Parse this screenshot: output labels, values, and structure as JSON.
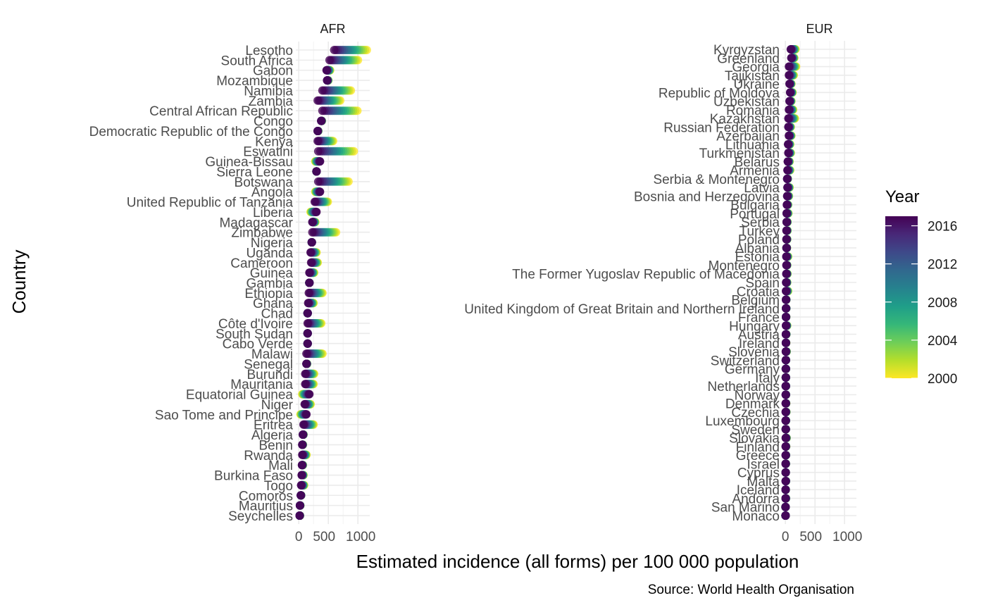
{
  "chart_data": {
    "type": "scatter",
    "facets": [
      "AFR",
      "EUR"
    ],
    "xlabel": "Estimated incidence (all forms) per 100 000 population",
    "ylabel": "Country",
    "caption": "Source: World Health Organisation",
    "x_ticks": [
      "0",
      "500",
      "1000"
    ],
    "xlim": [
      -50,
      1200
    ],
    "legend": {
      "title": "Year",
      "position": "right",
      "range": [
        2000,
        2017
      ],
      "breaks": [
        2016,
        2012,
        2008,
        2004,
        2000
      ],
      "colors": [
        "#fde725",
        "#5ec962",
        "#21918c",
        "#3b528b",
        "#440154"
      ]
    },
    "grid": true,
    "year_range": [
      2000,
      2017
    ],
    "afr": [
      {
        "name": "Lesotho",
        "start": 1150,
        "end": 600
      },
      {
        "name": "South Africa",
        "start": 1000,
        "end": 520
      },
      {
        "name": "Gabon",
        "start": 530,
        "end": 470
      },
      {
        "name": "Mozambique",
        "start": 500,
        "end": 480
      },
      {
        "name": "Namibia",
        "start": 880,
        "end": 400
      },
      {
        "name": "Zambia",
        "start": 700,
        "end": 320
      },
      {
        "name": "Central African Republic",
        "start": 990,
        "end": 400
      },
      {
        "name": "Congo",
        "start": 390,
        "end": 380
      },
      {
        "name": "Democratic Republic of the Congo",
        "start": 330,
        "end": 320
      },
      {
        "name": "Kenya",
        "start": 580,
        "end": 320
      },
      {
        "name": "Eswatini",
        "start": 930,
        "end": 330
      },
      {
        "name": "Guinea-Bissau",
        "start": 280,
        "end": 360
      },
      {
        "name": "Sierra Leone",
        "start": 300,
        "end": 300
      },
      {
        "name": "Botswana",
        "start": 840,
        "end": 330
      },
      {
        "name": "Angola",
        "start": 280,
        "end": 360
      },
      {
        "name": "United Republic of Tanzania",
        "start": 490,
        "end": 270
      },
      {
        "name": "Liberia",
        "start": 200,
        "end": 300
      },
      {
        "name": "Madagascar",
        "start": 280,
        "end": 230
      },
      {
        "name": "Zimbabwe",
        "start": 630,
        "end": 230
      },
      {
        "name": "Nigeria",
        "start": 220,
        "end": 220
      },
      {
        "name": "Uganda",
        "start": 300,
        "end": 200
      },
      {
        "name": "Cameroon",
        "start": 320,
        "end": 210
      },
      {
        "name": "Guinea",
        "start": 260,
        "end": 180
      },
      {
        "name": "Gambia",
        "start": 180,
        "end": 180
      },
      {
        "name": "Ethiopia",
        "start": 400,
        "end": 170
      },
      {
        "name": "Ghana",
        "start": 250,
        "end": 160
      },
      {
        "name": "Chad",
        "start": 150,
        "end": 150
      },
      {
        "name": "Côte d'Ivoire",
        "start": 380,
        "end": 150
      },
      {
        "name": "South Sudan",
        "start": 150,
        "end": 150
      },
      {
        "name": "Cabo Verde",
        "start": 150,
        "end": 150
      },
      {
        "name": "Malawi",
        "start": 400,
        "end": 130
      },
      {
        "name": "Senegal",
        "start": 140,
        "end": 130
      },
      {
        "name": "Burundi",
        "start": 260,
        "end": 110
      },
      {
        "name": "Mauritania",
        "start": 250,
        "end": 110
      },
      {
        "name": "Equatorial Guinea",
        "start": 60,
        "end": 180
      },
      {
        "name": "Niger",
        "start": 200,
        "end": 100
      },
      {
        "name": "Sao Tome and Principe",
        "start": 30,
        "end": 130
      },
      {
        "name": "Eritrea",
        "start": 250,
        "end": 80
      },
      {
        "name": "Algeria",
        "start": 80,
        "end": 70
      },
      {
        "name": "Benin",
        "start": 70,
        "end": 60
      },
      {
        "name": "Rwanda",
        "start": 130,
        "end": 60
      },
      {
        "name": "Mali",
        "start": 70,
        "end": 55
      },
      {
        "name": "Burkina Faso",
        "start": 80,
        "end": 50
      },
      {
        "name": "Togo",
        "start": 90,
        "end": 40
      },
      {
        "name": "Comoros",
        "start": 40,
        "end": 35
      },
      {
        "name": "Mauritius",
        "start": 25,
        "end": 20
      },
      {
        "name": "Seychelles",
        "start": 20,
        "end": 15
      }
    ],
    "eur": [
      {
        "name": "Kyrgyzstan",
        "start": 170,
        "end": 90
      },
      {
        "name": "Greenland",
        "start": 150,
        "end": 100
      },
      {
        "name": "Georgia",
        "start": 180,
        "end": 60
      },
      {
        "name": "Tajikistan",
        "start": 140,
        "end": 60
      },
      {
        "name": "Ukraine",
        "start": 100,
        "end": 70
      },
      {
        "name": "Republic of Moldova",
        "start": 120,
        "end": 80
      },
      {
        "name": "Uzbekistan",
        "start": 100,
        "end": 70
      },
      {
        "name": "Romania",
        "start": 130,
        "end": 60
      },
      {
        "name": "Kazakhstan",
        "start": 160,
        "end": 50
      },
      {
        "name": "Russian Federation",
        "start": 90,
        "end": 50
      },
      {
        "name": "Azerbaijan",
        "start": 100,
        "end": 60
      },
      {
        "name": "Lithuania",
        "start": 80,
        "end": 45
      },
      {
        "name": "Turkmenistan",
        "start": 90,
        "end": 50
      },
      {
        "name": "Belarus",
        "start": 70,
        "end": 40
      },
      {
        "name": "Armenia",
        "start": 80,
        "end": 35
      },
      {
        "name": "Serbia & Montenegro",
        "start": 40,
        "end": 30
      },
      {
        "name": "Latvia",
        "start": 70,
        "end": 35
      },
      {
        "name": "Bosnia and Herzegovina",
        "start": 60,
        "end": 30
      },
      {
        "name": "Bulgaria",
        "start": 45,
        "end": 25
      },
      {
        "name": "Portugal",
        "start": 50,
        "end": 20
      },
      {
        "name": "Serbia",
        "start": 35,
        "end": 20
      },
      {
        "name": "Turkey",
        "start": 35,
        "end": 18
      },
      {
        "name": "Poland",
        "start": 30,
        "end": 18
      },
      {
        "name": "Albania",
        "start": 25,
        "end": 18
      },
      {
        "name": "Estonia",
        "start": 45,
        "end": 15
      },
      {
        "name": "Montenegro",
        "start": 30,
        "end": 18
      },
      {
        "name": "The Former Yugoslav Republic of Macedonia",
        "start": 35,
        "end": 15
      },
      {
        "name": "Spain",
        "start": 30,
        "end": 12
      },
      {
        "name": "Croatia",
        "start": 45,
        "end": 10
      },
      {
        "name": "Belgium",
        "start": 15,
        "end": 10
      },
      {
        "name": "United Kingdom of Great Britain and Northern Ireland",
        "start": 15,
        "end": 10
      },
      {
        "name": "France",
        "start": 12,
        "end": 9
      },
      {
        "name": "Hungary",
        "start": 30,
        "end": 9
      },
      {
        "name": "Austria",
        "start": 15,
        "end": 8
      },
      {
        "name": "Ireland",
        "start": 12,
        "end": 8
      },
      {
        "name": "Slovenia",
        "start": 20,
        "end": 7
      },
      {
        "name": "Switzerland",
        "start": 10,
        "end": 7
      },
      {
        "name": "Germany",
        "start": 10,
        "end": 7
      },
      {
        "name": "Italy",
        "start": 10,
        "end": 7
      },
      {
        "name": "Netherlands",
        "start": 10,
        "end": 6
      },
      {
        "name": "Norway",
        "start": 10,
        "end": 6
      },
      {
        "name": "Denmark",
        "start": 12,
        "end": 6
      },
      {
        "name": "Czechia",
        "start": 15,
        "end": 5
      },
      {
        "name": "Luxembourg",
        "start": 10,
        "end": 5
      },
      {
        "name": "Sweden",
        "start": 7,
        "end": 6
      },
      {
        "name": "Slovakia",
        "start": 20,
        "end": 6
      },
      {
        "name": "Finland",
        "start": 12,
        "end": 5
      },
      {
        "name": "Greece",
        "start": 10,
        "end": 5
      },
      {
        "name": "Israel",
        "start": 8,
        "end": 4
      },
      {
        "name": "Cyprus",
        "start": 5,
        "end": 5
      },
      {
        "name": "Malta",
        "start": 10,
        "end": 5
      },
      {
        "name": "Iceland",
        "start": 5,
        "end": 3
      },
      {
        "name": "Andorra",
        "start": 10,
        "end": 3
      },
      {
        "name": "San Marino",
        "start": 3,
        "end": 2
      },
      {
        "name": "Monaco",
        "start": 3,
        "end": 2
      }
    ]
  }
}
